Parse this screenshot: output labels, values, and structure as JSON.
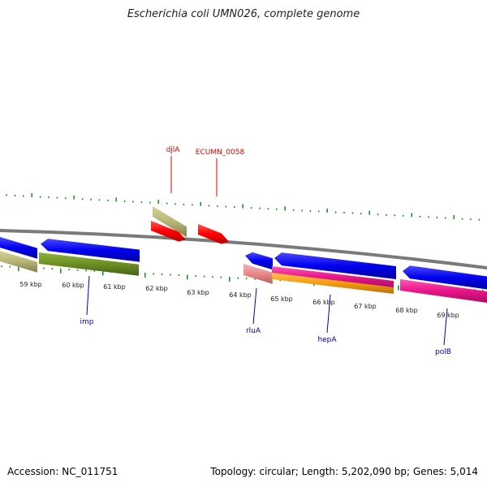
{
  "title": "Escherichia coli UMN026, complete genome",
  "accession": "Accession: NC_011751",
  "summary": "Topology: circular; Length: 5,202,090 bp; Genes: 5,014",
  "colors": {
    "backbone": "#7a7a7a",
    "tick": "#1a8a1a",
    "cds_blue": "#0000ee",
    "cds_red": "#ff0000",
    "khaki": "#b8b376",
    "olive": "#6b8e23",
    "pink": "#e8158a",
    "salmon": "#e88a8a",
    "orange": "#f39c12",
    "red_label": "#dd0000",
    "blue_label": "#0000aa"
  },
  "kbp_labels": [
    "59 kbp",
    "60 kbp",
    "61 kbp",
    "62 kbp",
    "63 kbp",
    "64 kbp",
    "65 kbp",
    "66 kbp",
    "67 kbp",
    "68 kbp",
    "69 kbp"
  ],
  "upper_gene_labels": [
    "djlA",
    "ECUMN_0058"
  ],
  "lower_gene_labels": [
    "imp",
    "rluA",
    "hepA",
    "polB"
  ]
}
